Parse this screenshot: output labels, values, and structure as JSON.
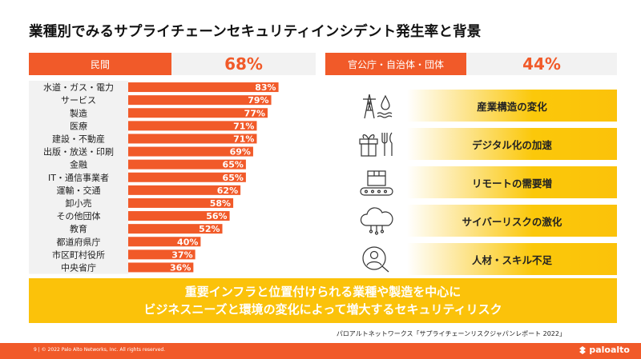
{
  "page": {
    "title": "業種別でみるサプライチェーンセキュリティインシデント発生率と背景"
  },
  "header": {
    "left_label": "民間",
    "left_value": "68%",
    "right_label": "官公庁・自治体・団体",
    "right_value": "44%"
  },
  "chart_data": {
    "type": "bar",
    "orientation": "horizontal",
    "categories": [
      "水道・ガス・電力",
      "サービス",
      "製造",
      "医療",
      "建設・不動産",
      "出版・放送・印刷",
      "金融",
      "IT・通信事業者",
      "運輸・交通",
      "卸小売",
      "その他団体",
      "教育",
      "都道府県庁",
      "市区町村役所",
      "中央省庁"
    ],
    "values": [
      83,
      79,
      77,
      71,
      71,
      69,
      65,
      65,
      62,
      58,
      56,
      52,
      40,
      37,
      36
    ],
    "value_labels": [
      "83%",
      "79%",
      "77%",
      "71%",
      "71%",
      "69%",
      "65%",
      "65%",
      "62%",
      "58%",
      "56%",
      "52%",
      "40%",
      "37%",
      "36%"
    ],
    "colors": {
      "bar": "#f15a29",
      "label": "#ffffff"
    }
  },
  "factors": [
    {
      "label": "産業構造の変化",
      "icon": "power-tower-water-icon"
    },
    {
      "label": "デジタル化の加速",
      "icon": "gift-utensils-icon"
    },
    {
      "label": "リモートの需要増",
      "icon": "box-conveyor-icon"
    },
    {
      "label": "サイバーリスクの激化",
      "icon": "cloud-network-icon"
    },
    {
      "label": "人材・スキル不足",
      "icon": "person-search-icon"
    }
  ],
  "banner": {
    "line1": "重要インフラと位置付けられる業種や製造を中心に",
    "line2": "ビジネスニーズと環境の変化によって増大するセキュリティリスク"
  },
  "source": "パロアルトネットワークス「サプライチェーンリスクジャパンレポート 2022」",
  "footer": {
    "copyright": "9 | © 2022 Palo Alto Networks, Inc. All rights reserved.",
    "logo_text": "paloalto"
  },
  "colors": {
    "accent": "#f15a29",
    "highlight": "#fbc20a",
    "header_bg": "#f2f2f2"
  }
}
